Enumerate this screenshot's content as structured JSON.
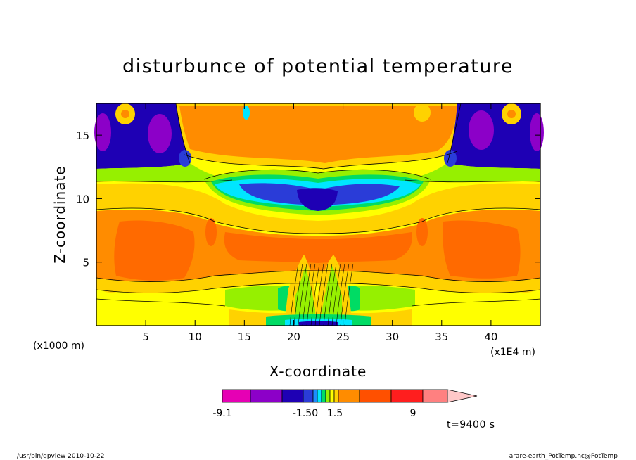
{
  "chart_data": {
    "type": "heatmap",
    "title": "disturbunce of potential temperature",
    "xlabel": "X-coordinate",
    "ylabel": "Z-coordinate",
    "x_unit": "(x1E4 m)",
    "y_unit": "(x1000 m)",
    "xlim": [
      0,
      45
    ],
    "ylim": [
      0,
      17.5
    ],
    "x_ticks": [
      "5",
      "10",
      "15",
      "20",
      "25",
      "30",
      "35",
      "40"
    ],
    "x_tick_values": [
      5,
      10,
      15,
      20,
      25,
      30,
      35,
      40
    ],
    "y_ticks": [
      "5",
      "10",
      "15"
    ],
    "y_tick_values": [
      5,
      10,
      15
    ],
    "colorbar": {
      "colors": [
        "#e600b4",
        "#8c00c8",
        "#1e00b4",
        "#2a3cd8",
        "#1e8cff",
        "#00e6ff",
        "#00dc64",
        "#96f000",
        "#ffff00",
        "#ffd200",
        "#ff8c00",
        "#ff5000",
        "#ff1e1e",
        "#ff8080",
        "#ffc8c8"
      ],
      "tick_labels": [
        "-9.1",
        "-1.50",
        "1.5",
        "9"
      ]
    },
    "time_label": "t=9400 s"
  },
  "footer": {
    "left": "/usr/bin/gpview   2010-10-22",
    "right": "arare-earth_PotTemp.nc@PotTemp"
  }
}
